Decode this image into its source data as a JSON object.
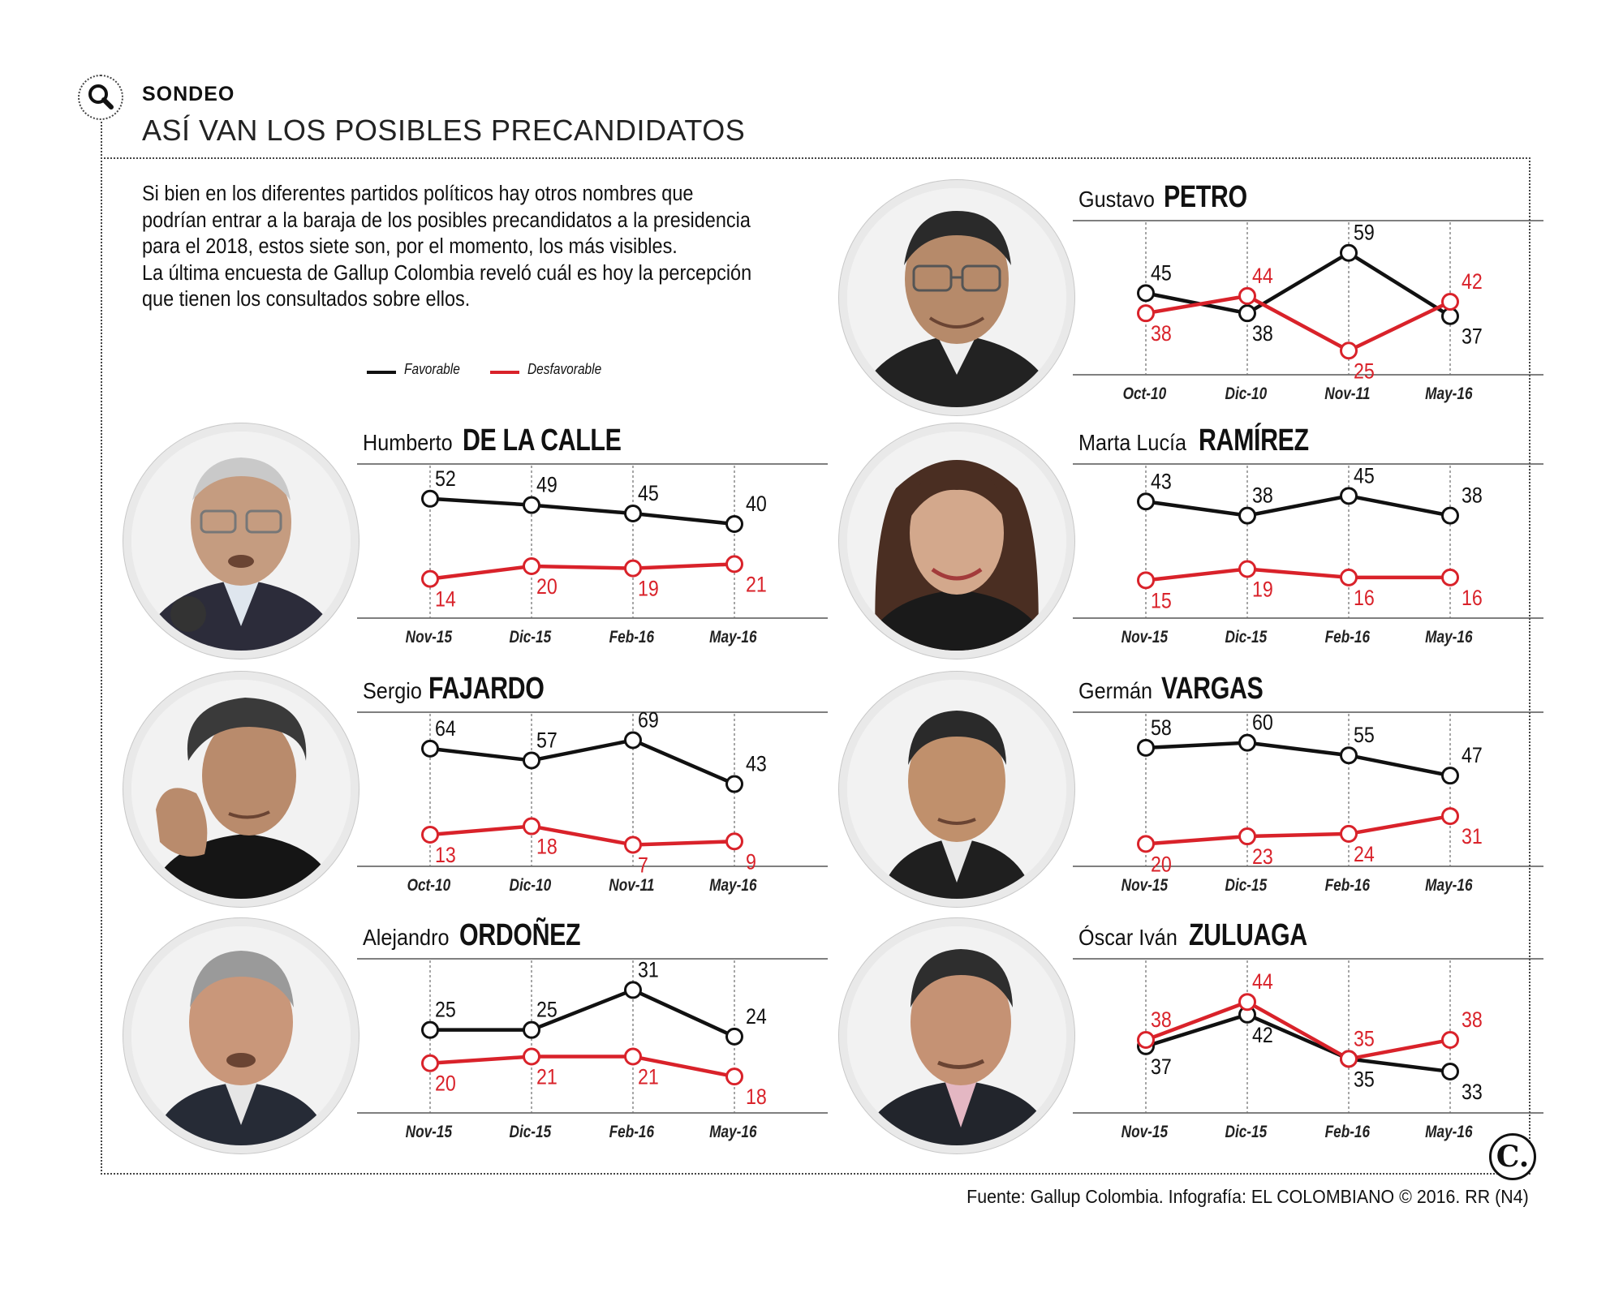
{
  "header": {
    "kicker": "SONDEO",
    "headline": "ASÍ VAN LOS POSIBLES PRECANDIDATOS",
    "icon": "search-icon"
  },
  "intro_lines": [
    "Si bien en los diferentes partidos políticos hay otros nombres que",
    "podrían entrar a la baraja de los posibles precandidatos a la presidencia",
    "para el 2018, estos siete son, por el momento, los más visibles.",
    "La última encuesta de Gallup Colombia reveló cuál es hoy la percepción",
    "que tienen los consultados sobre ellos."
  ],
  "legend": {
    "favorable": "Favorable",
    "desfavorable": "Desfavorable"
  },
  "colors": {
    "favorable": "#111111",
    "desfavorable": "#d9222a",
    "grid": "#555555"
  },
  "chart_data": [
    {
      "type": "line",
      "first_name": "Gustavo",
      "last_name": "PETRO",
      "categories": [
        "Oct-10",
        "Dic-10",
        "Nov-11",
        "May-16"
      ],
      "series": [
        {
          "name": "Favorable",
          "values": [
            45,
            38,
            59,
            37
          ]
        },
        {
          "name": "Desfavorable",
          "values": [
            38,
            44,
            25,
            42
          ]
        }
      ],
      "ylim": [
        20,
        64
      ]
    },
    {
      "type": "line",
      "first_name": "Humberto",
      "last_name": "DE LA CALLE",
      "categories": [
        "Nov-15",
        "Dic-15",
        "Feb-16",
        "May-16"
      ],
      "series": [
        {
          "name": "Favorable",
          "values": [
            52,
            49,
            45,
            40
          ]
        },
        {
          "name": "Desfavorable",
          "values": [
            14,
            20,
            19,
            21
          ]
        }
      ],
      "ylim": [
        0,
        60
      ]
    },
    {
      "type": "line",
      "first_name": "Marta Lucía",
      "last_name": "RAMÍREZ",
      "categories": [
        "Nov-15",
        "Dic-15",
        "Feb-16",
        "May-16"
      ],
      "series": [
        {
          "name": "Favorable",
          "values": [
            43,
            38,
            45,
            38
          ]
        },
        {
          "name": "Desfavorable",
          "values": [
            15,
            19,
            16,
            16
          ]
        }
      ],
      "ylim": [
        5,
        50
      ]
    },
    {
      "type": "line",
      "first_name": "Sergio",
      "last_name": "FAJARDO",
      "categories": [
        "Oct-10",
        "Dic-10",
        "Nov-11",
        "May-16"
      ],
      "series": [
        {
          "name": "Favorable",
          "values": [
            64,
            57,
            69,
            43
          ]
        },
        {
          "name": "Desfavorable",
          "values": [
            13,
            18,
            7,
            9
          ]
        }
      ],
      "ylim": [
        0,
        75
      ]
    },
    {
      "type": "line",
      "first_name": "Germán",
      "last_name": "VARGAS",
      "categories": [
        "Nov-15",
        "Dic-15",
        "Feb-16",
        "May-16"
      ],
      "series": [
        {
          "name": "Favorable",
          "values": [
            58,
            60,
            55,
            47
          ]
        },
        {
          "name": "Desfavorable",
          "values": [
            20,
            23,
            24,
            31
          ]
        }
      ],
      "ylim": [
        15,
        65
      ]
    },
    {
      "type": "line",
      "first_name": "Alejandro",
      "last_name": "ORDOÑEZ",
      "categories": [
        "Nov-15",
        "Dic-15",
        "Feb-16",
        "May-16"
      ],
      "series": [
        {
          "name": "Favorable",
          "values": [
            25,
            25,
            31,
            24
          ]
        },
        {
          "name": "Desfavorable",
          "values": [
            20,
            21,
            21,
            18
          ]
        }
      ],
      "ylim": [
        14,
        33
      ]
    },
    {
      "type": "line",
      "first_name": "Óscar Iván",
      "last_name": "ZULUAGA",
      "categories": [
        "Nov-15",
        "Dic-15",
        "Feb-16",
        "May-16"
      ],
      "series": [
        {
          "name": "Favorable",
          "values": [
            37,
            42,
            35,
            33
          ]
        },
        {
          "name": "Desfavorable",
          "values": [
            38,
            44,
            35,
            38
          ]
        }
      ],
      "ylim": [
        28,
        48
      ]
    }
  ],
  "credit": "Fuente: Gallup Colombia. Infografía: EL COLOMBIANO © 2016. RR (N4)",
  "logo_letter": "C."
}
